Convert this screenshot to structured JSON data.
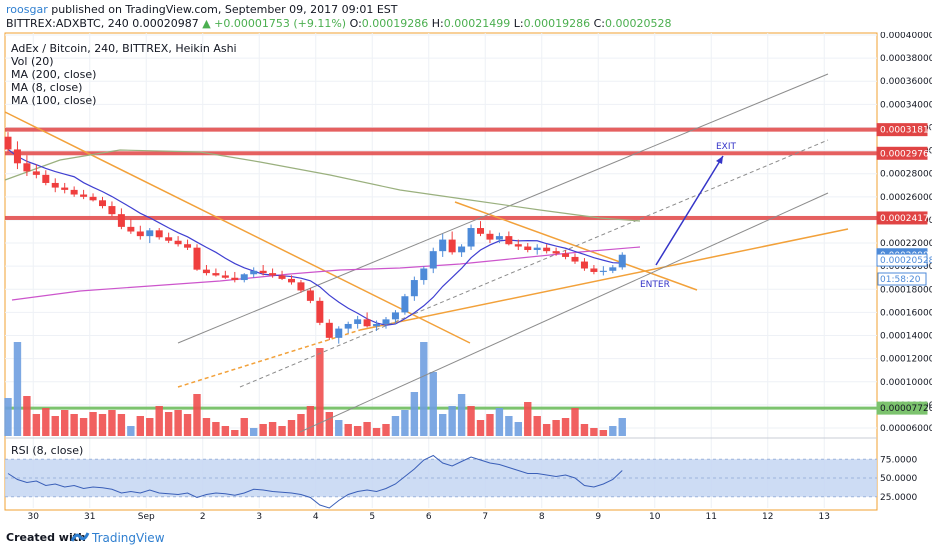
{
  "header": {
    "author": "roosgar",
    "published_text": "published on TradingView.com, September 09, 2017 09:01 EST",
    "symbol_line": "BITTREX:ADXBTC, 240",
    "last_price": "0.00020987",
    "change_arrow": "▲",
    "change": "+0.00001753 (+9.11%)",
    "o_label": "O:",
    "o_value": "0.00019286",
    "h_label": "H:",
    "h_value": "0.00021499",
    "l_label": "L:",
    "l_value": "0.00019286",
    "c_label": "C:",
    "c_value": "0.00020528"
  },
  "legend": {
    "title": "AdEx / Bitcoin, 240, BITTREX, Heikin Ashi",
    "vol": "Vol (20)",
    "ma200": "MA (200, close)",
    "ma8": "MA (8, close)",
    "ma100": "MA (100, close)"
  },
  "rsi_label": "RSI (8, close)",
  "footer": {
    "created": "Created with",
    "brand": "TradingView"
  },
  "colors": {
    "up": "#4d8ad8",
    "down": "#ef3e3e",
    "vol_up": "#6f9fe0",
    "vol_down": "#ef4f4f",
    "ma200": "#cc55cc",
    "ma8": "#3f3fd1",
    "ma100": "#9ab07e",
    "orange": "#f2a13a",
    "channel": "#8c8c8c",
    "red_level": "#e04444",
    "green_level": "#7cc36e",
    "rsi_line": "#3a5fb8",
    "rsi_band": "#c4d6f2",
    "arrow": "#3535c8"
  },
  "annotations": {
    "exit": "EXIT",
    "enter": "ENTER",
    "timer": "01:58:20"
  },
  "chart_data": {
    "type": "candlestick",
    "price_axis": {
      "ticks": [
        "0.00040000",
        "0.00038000",
        "0.00036000",
        "0.00034000",
        "0.00032000",
        "0.00030000",
        "0.00028000",
        "0.00026000",
        "0.00024000",
        "0.00022000",
        "0.00020000",
        "0.00018000",
        "0.00016000",
        "0.00014000",
        "0.00012000",
        "0.00010000",
        "0.00008000",
        "0.00006000"
      ],
      "ylim": [
        5.5e-05,
        0.0004
      ]
    },
    "rsi_axis": {
      "ticks": [
        "75.0000",
        "50.0000",
        "25.0000"
      ]
    },
    "x_labels": [
      {
        "label": "30",
        "x": 0.5
      },
      {
        "label": "31",
        "x": 1.5
      },
      {
        "label": "Sep",
        "x": 2.5
      },
      {
        "label": "2",
        "x": 3.5
      },
      {
        "label": "3",
        "x": 4.5
      },
      {
        "label": "4",
        "x": 5.5
      },
      {
        "label": "5",
        "x": 6.5
      },
      {
        "label": "6",
        "x": 7.5
      },
      {
        "label": "7",
        "x": 8.5
      },
      {
        "label": "8",
        "x": 9.5
      },
      {
        "label": "9",
        "x": 10.5
      },
      {
        "label": "10",
        "x": 11.5
      },
      {
        "label": "11",
        "x": 12.5
      },
      {
        "label": "12",
        "x": 13.5
      },
      {
        "label": "13",
        "x": 14.5
      }
    ],
    "price_labels": [
      {
        "value": 0.00031812,
        "text": "0.00031812",
        "kind": "red"
      },
      {
        "value": 0.00029767,
        "text": "0.00029767",
        "kind": "red"
      },
      {
        "value": 0.00024171,
        "text": "0.00024171",
        "kind": "red"
      },
      {
        "value": 0.00020987,
        "text": "0.00020987",
        "kind": "up"
      },
      {
        "value": 0.00020528,
        "text": "0.00020528",
        "kind": "up"
      },
      {
        "value": 7.72e-05,
        "text": "0.00007720",
        "kind": "green"
      }
    ],
    "horizontal_levels": [
      0.00031812,
      0.00029767,
      0.00024171
    ],
    "volume_level": 7.72e-05,
    "candles": [
      [
        0.000312,
        0.000316,
        0.000298,
        0.000301
      ],
      [
        0.000301,
        0.000308,
        0.000284,
        0.000289
      ],
      [
        0.000289,
        0.000296,
        0.000278,
        0.000282
      ],
      [
        0.000282,
        0.000288,
        0.000276,
        0.000279
      ],
      [
        0.000279,
        0.000283,
        0.00027,
        0.000272
      ],
      [
        0.000272,
        0.000276,
        0.000264,
        0.000268
      ],
      [
        0.000268,
        0.000272,
        0.000263,
        0.000266
      ],
      [
        0.000266,
        0.000269,
        0.00026,
        0.000262
      ],
      [
        0.000262,
        0.000266,
        0.000258,
        0.00026
      ],
      [
        0.00026,
        0.000263,
        0.000256,
        0.000257
      ],
      [
        0.000257,
        0.00026,
        0.00025,
        0.000252
      ],
      [
        0.000252,
        0.000256,
        0.000243,
        0.000245
      ],
      [
        0.000245,
        0.00025,
        0.000232,
        0.000234
      ],
      [
        0.000234,
        0.000241,
        0.000228,
        0.00023
      ],
      [
        0.00023,
        0.000235,
        0.000223,
        0.000226
      ],
      [
        0.000226,
        0.000233,
        0.00022,
        0.000231
      ],
      [
        0.000231,
        0.000233,
        0.000223,
        0.000225
      ],
      [
        0.000225,
        0.000229,
        0.00022,
        0.000222
      ],
      [
        0.000222,
        0.000226,
        0.000217,
        0.000219
      ],
      [
        0.000219,
        0.000223,
        0.000214,
        0.000216
      ],
      [
        0.000216,
        0.000219,
        0.000196,
        0.000197
      ],
      [
        0.000197,
        0.000201,
        0.000192,
        0.000194
      ],
      [
        0.000194,
        0.000198,
        0.000191,
        0.000192
      ],
      [
        0.000192,
        0.000196,
        0.000189,
        0.00019
      ],
      [
        0.00019,
        0.000195,
        0.000186,
        0.000188
      ],
      [
        0.000188,
        0.000194,
        0.000186,
        0.000193
      ],
      [
        0.000193,
        0.000199,
        0.00019,
        0.000196
      ],
      [
        0.000196,
        0.000201,
        0.000192,
        0.000194
      ],
      [
        0.000194,
        0.000198,
        0.00019,
        0.000192
      ],
      [
        0.000192,
        0.000196,
        0.000188,
        0.000189
      ],
      [
        0.000189,
        0.000192,
        0.000184,
        0.000186
      ],
      [
        0.000186,
        0.000188,
        0.000177,
        0.000179
      ],
      [
        0.000179,
        0.000181,
        0.000168,
        0.00017
      ],
      [
        0.00017,
        0.000173,
        0.000149,
        0.000151
      ],
      [
        0.000151,
        0.000154,
        0.000136,
        0.000138
      ],
      [
        0.000138,
        0.000148,
        0.000133,
        0.000146
      ],
      [
        0.000146,
        0.000152,
        0.000142,
        0.00015
      ],
      [
        0.00015,
        0.000157,
        0.000146,
        0.000154
      ],
      [
        0.000154,
        0.00016,
        0.000147,
        0.000148
      ],
      [
        0.000148,
        0.000153,
        0.000144,
        0.00015
      ],
      [
        0.00015,
        0.000156,
        0.000146,
        0.000154
      ],
      [
        0.000154,
        0.000162,
        0.00015,
        0.00016
      ],
      [
        0.00016,
        0.000176,
        0.000158,
        0.000174
      ],
      [
        0.000174,
        0.000191,
        0.00017,
        0.000188
      ],
      [
        0.000188,
        0.0002,
        0.000184,
        0.000198
      ],
      [
        0.000198,
        0.000216,
        0.000194,
        0.000213
      ],
      [
        0.000213,
        0.000228,
        0.000208,
        0.000223
      ],
      [
        0.000223,
        0.00023,
        0.00021,
        0.000212
      ],
      [
        0.000212,
        0.000219,
        0.000208,
        0.000217
      ],
      [
        0.000217,
        0.000236,
        0.000214,
        0.000233
      ],
      [
        0.000233,
        0.000239,
        0.000226,
        0.000228
      ],
      [
        0.000228,
        0.000231,
        0.00022,
        0.000223
      ],
      [
        0.000223,
        0.000229,
        0.00022,
        0.000226
      ],
      [
        0.000226,
        0.00023,
        0.000218,
        0.000219
      ],
      [
        0.000219,
        0.000223,
        0.000214,
        0.000217
      ],
      [
        0.000217,
        0.00022,
        0.000212,
        0.000214
      ],
      [
        0.000214,
        0.000219,
        0.00021,
        0.000216
      ],
      [
        0.000216,
        0.000219,
        0.000211,
        0.000213
      ],
      [
        0.000213,
        0.000216,
        0.000209,
        0.000211
      ],
      [
        0.000211,
        0.000214,
        0.000206,
        0.000208
      ],
      [
        0.000208,
        0.000211,
        0.000202,
        0.000204
      ],
      [
        0.000204,
        0.000207,
        0.000196,
        0.000198
      ],
      [
        0.000198,
        0.000201,
        0.000193,
        0.000195
      ],
      [
        0.000195,
        0.0002,
        0.000192,
        0.000196
      ],
      [
        0.000196,
        0.000201,
        0.000194,
        0.000199
      ],
      [
        0.000199,
        0.000212,
        0.000197,
        0.0002099
      ]
    ],
    "volume": [
      [
        38,
        1
      ],
      [
        94,
        1
      ],
      [
        40,
        0
      ],
      [
        22,
        0
      ],
      [
        28,
        0
      ],
      [
        20,
        0
      ],
      [
        26,
        0
      ],
      [
        22,
        0
      ],
      [
        18,
        0
      ],
      [
        24,
        0
      ],
      [
        22,
        0
      ],
      [
        26,
        0
      ],
      [
        22,
        0
      ],
      [
        10,
        1
      ],
      [
        20,
        0
      ],
      [
        18,
        0
      ],
      [
        30,
        0
      ],
      [
        24,
        0
      ],
      [
        26,
        0
      ],
      [
        22,
        0
      ],
      [
        42,
        0
      ],
      [
        18,
        0
      ],
      [
        14,
        0
      ],
      [
        10,
        0
      ],
      [
        6,
        0
      ],
      [
        18,
        0
      ],
      [
        8,
        1
      ],
      [
        12,
        0
      ],
      [
        14,
        0
      ],
      [
        10,
        0
      ],
      [
        16,
        0
      ],
      [
        22,
        0
      ],
      [
        30,
        0
      ],
      [
        88,
        0
      ],
      [
        24,
        0
      ],
      [
        16,
        1
      ],
      [
        12,
        0
      ],
      [
        10,
        0
      ],
      [
        14,
        0
      ],
      [
        8,
        0
      ],
      [
        12,
        0
      ],
      [
        20,
        1
      ],
      [
        26,
        1
      ],
      [
        44,
        1
      ],
      [
        94,
        1
      ],
      [
        64,
        1
      ],
      [
        22,
        1
      ],
      [
        30,
        1
      ],
      [
        42,
        1
      ],
      [
        30,
        0
      ],
      [
        16,
        0
      ],
      [
        22,
        0
      ],
      [
        28,
        1
      ],
      [
        20,
        1
      ],
      [
        14,
        1
      ],
      [
        34,
        0
      ],
      [
        20,
        0
      ],
      [
        12,
        0
      ],
      [
        16,
        0
      ],
      [
        18,
        0
      ],
      [
        28,
        0
      ],
      [
        12,
        0
      ],
      [
        8,
        0
      ],
      [
        6,
        0
      ],
      [
        10,
        1
      ],
      [
        18,
        1
      ]
    ],
    "rsi": [
      56,
      48,
      44,
      46,
      40,
      42,
      38,
      40,
      36,
      38,
      37,
      35,
      30,
      32,
      30,
      34,
      30,
      29,
      28,
      30,
      24,
      28,
      30,
      29,
      27,
      30,
      35,
      34,
      32,
      31,
      30,
      28,
      24,
      14,
      10,
      20,
      28,
      32,
      34,
      32,
      36,
      42,
      52,
      62,
      74,
      80,
      70,
      66,
      72,
      78,
      74,
      70,
      68,
      64,
      60,
      56,
      56,
      54,
      52,
      54,
      50,
      40,
      38,
      42,
      48,
      60
    ]
  }
}
